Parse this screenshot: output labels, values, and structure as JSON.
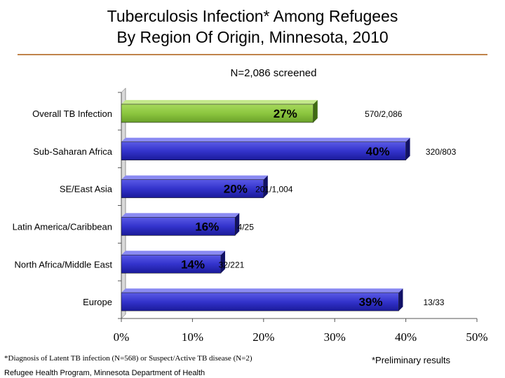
{
  "header": {
    "title_line1": "Tuberculosis Infection* Among Refugees",
    "title_line2": "By Region Of Origin, Minnesota, 2010",
    "subtitle": "N=2,086 screened"
  },
  "chart_data": {
    "type": "bar",
    "orientation": "horizontal",
    "categories": [
      "Overall TB Infection",
      "Sub-Saharan Africa",
      "SE/East Asia",
      "Latin America/Caribbean",
      "North Africa/Middle East",
      "Europe"
    ],
    "values": [
      27,
      40,
      20,
      16,
      14,
      39
    ],
    "value_labels": [
      "27%",
      "40%",
      "20%",
      "16%",
      "14%",
      "39%"
    ],
    "count_labels": [
      "570/2,086",
      "320/803",
      "201/1,004",
      "4/25",
      "32/221",
      "13/33"
    ],
    "xlim": [
      0,
      50
    ],
    "xticks": [
      0,
      10,
      20,
      30,
      40,
      50
    ],
    "xtick_labels": [
      "0%",
      "10%",
      "20%",
      "30%",
      "40%",
      "50%"
    ],
    "highlight_color": "#8cc63f",
    "bar_color": "#3333cc",
    "grid": false,
    "legend": "none"
  },
  "footer": {
    "footnote": "*Diagnosis of Latent TB infection (N=568) or Suspect/Active TB disease (N=2)",
    "preliminary": "*Preliminary results",
    "source": "Refugee Health Program, Minnesota Department of Health"
  }
}
